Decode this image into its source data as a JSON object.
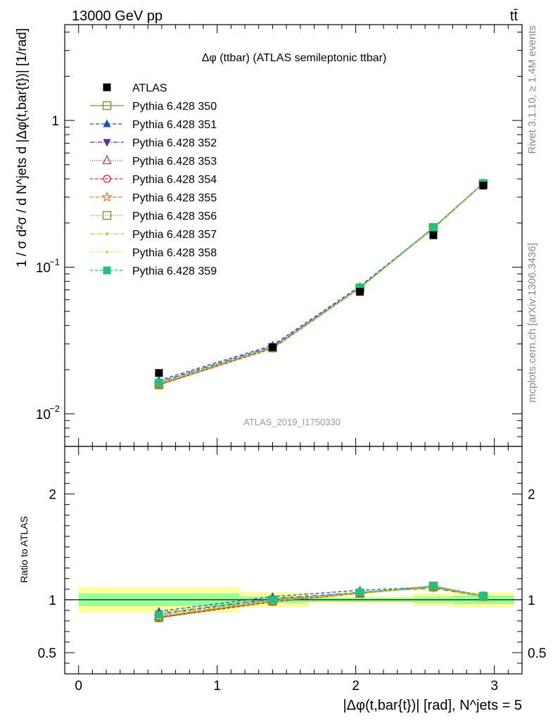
{
  "header": {
    "energy_label": "13000 GeV pp",
    "process_label": "tt̄",
    "side_label_top": "Rivet 3.1.10, ≥ 1.4M events",
    "side_label_bottom": "mcplots.cern.ch [arXiv:1306.3436]"
  },
  "chart_data": {
    "type": "line",
    "title": "Δφ (ttbar) (ATLAS semileptonic ttbar)",
    "analysis_label": "ATLAS_2019_I1750330",
    "xlabel": "|Δφ(t,bar{t})| [rad], N^jets = 5",
    "ylabel": "1 / σ d²σ / d N^jets d |Δφ(t,bar{t})| [1/rad]",
    "ratio_ylabel": "Ratio to ATLAS",
    "xlim": [
      -0.1,
      3.2
    ],
    "ylim": [
      0.006,
      4.5
    ],
    "yscale": "log",
    "ratio_ylim": [
      0.3,
      2.45
    ],
    "x_ticks": [
      "0",
      "1",
      "2",
      "3"
    ],
    "y_ticks": [
      "10^-2",
      "10^-1",
      "1"
    ],
    "ratio_ticks": [
      "0.5",
      "1",
      "2"
    ],
    "x": [
      0.58,
      1.4,
      2.03,
      2.56,
      2.92
    ],
    "bin_edges": [
      0,
      1.16,
      1.66,
      2.41,
      2.7,
      3.14
    ],
    "reference": {
      "name": "ATLAS",
      "values": [
        0.019,
        0.0285,
        0.068,
        0.165,
        0.36
      ],
      "band_inner": [
        0.06,
        0.03,
        0.02,
        0.03,
        0.04
      ],
      "band_outer": [
        0.12,
        0.07,
        0.03,
        0.06,
        0.07
      ]
    },
    "series": [
      {
        "name": "Pythia 6.428 350",
        "color": "#8c8c1e",
        "dash": "",
        "marker": "square-open",
        "ratios": [
          0.83,
          0.99,
          1.06,
          1.13,
          1.03
        ]
      },
      {
        "name": "Pythia 6.428 351",
        "color": "#1f4fb4",
        "dash": "5,3",
        "marker": "triangle-up",
        "ratios": [
          0.89,
          1.03,
          1.09,
          1.12,
          1.04
        ]
      },
      {
        "name": "Pythia 6.428 352",
        "color": "#5a2aa8",
        "dash": "6,2,1,2",
        "marker": "triangle-down",
        "ratios": [
          0.87,
          1.01,
          1.07,
          1.11,
          1.03
        ]
      },
      {
        "name": "Pythia 6.428 353",
        "color": "#c0307a",
        "dash": "1,2",
        "marker": "triangle-open",
        "ratios": [
          0.84,
          0.98,
          1.06,
          1.12,
          1.03
        ]
      },
      {
        "name": "Pythia 6.428 354",
        "color": "#e0202a",
        "dash": "4,3",
        "marker": "circle-open",
        "ratios": [
          0.83,
          0.98,
          1.06,
          1.12,
          1.03
        ]
      },
      {
        "name": "Pythia 6.428 355",
        "color": "#f07820",
        "dash": "5,3",
        "marker": "star-open",
        "ratios": [
          0.84,
          0.99,
          1.07,
          1.12,
          1.03
        ]
      },
      {
        "name": "Pythia 6.428 356",
        "color": "#7a9a20",
        "dash": "1,2",
        "marker": "square-open",
        "ratios": [
          0.84,
          0.99,
          1.06,
          1.12,
          1.03
        ]
      },
      {
        "name": "Pythia 6.428 357",
        "color": "#d0c020",
        "dash": "6,2,1,2",
        "marker": "dot",
        "ratios": [
          0.85,
          0.99,
          1.06,
          1.12,
          1.03
        ]
      },
      {
        "name": "Pythia 6.428 358",
        "color": "#c8e020",
        "dash": "1,2",
        "marker": "dot",
        "ratios": [
          0.85,
          1.0,
          1.06,
          1.12,
          1.03
        ]
      },
      {
        "name": "Pythia 6.428 359",
        "color": "#20c080",
        "dash": "4,3",
        "marker": "square-filled",
        "ratios": [
          0.86,
          1.0,
          1.07,
          1.13,
          1.04
        ]
      }
    ]
  }
}
